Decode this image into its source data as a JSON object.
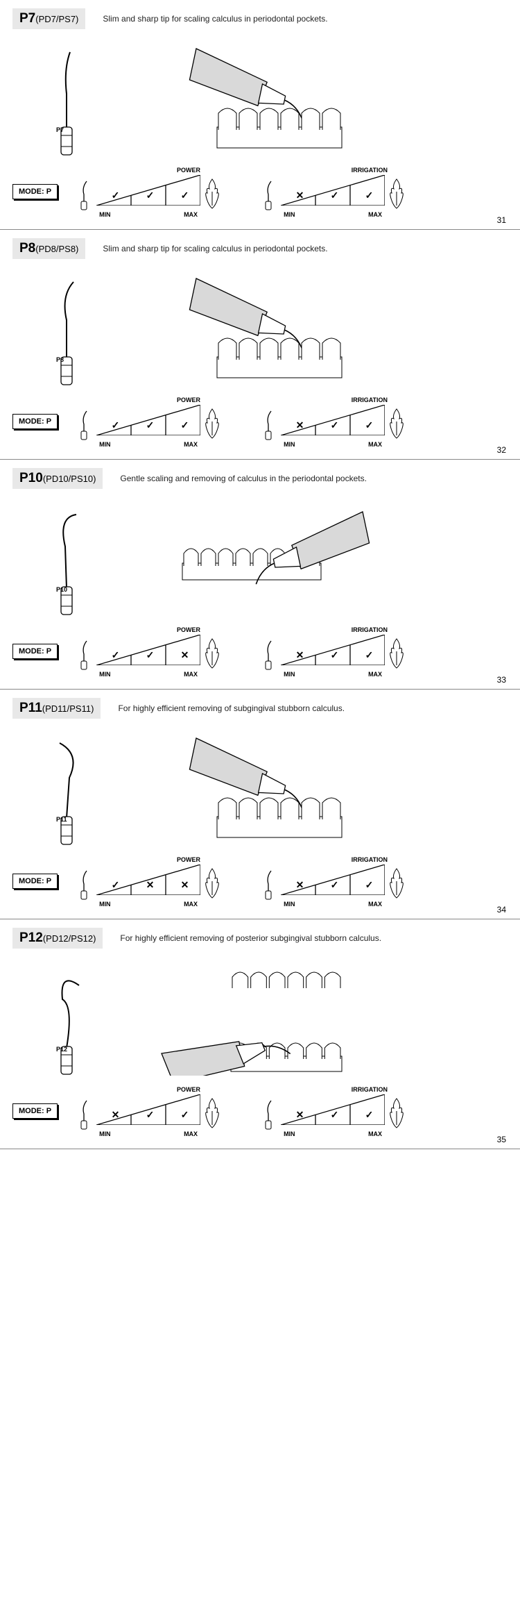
{
  "sections": [
    {
      "code_main": "P7",
      "code_sub": "(PD7/PS7)",
      "tip_label": "P7",
      "description": "Slim and sharp tip for scaling calculus in periodontal pockets.",
      "mode": "MODE: P",
      "power_marks": [
        "✓",
        "✓",
        "✓"
      ],
      "irrigation_marks": [
        "✕",
        "✓",
        "✓"
      ],
      "illus_variant": "handpiece_top",
      "page": "31"
    },
    {
      "code_main": "P8",
      "code_sub": "(PD8/PS8)",
      "tip_label": "P8",
      "description": "Slim and sharp tip for scaling calculus in periodontal pockets.",
      "mode": "MODE: P",
      "power_marks": [
        "✓",
        "✓",
        "✓"
      ],
      "irrigation_marks": [
        "✕",
        "✓",
        "✓"
      ],
      "illus_variant": "handpiece_inter",
      "page": "32"
    },
    {
      "code_main": "P10",
      "code_sub": "(PD10/PS10)",
      "tip_label": "P10",
      "description": "Gentle scaling and removing of calculus in the periodontal pockets.",
      "mode": "MODE: P",
      "power_marks": [
        "✓",
        "✓",
        "✕"
      ],
      "irrigation_marks": [
        "✕",
        "✓",
        "✓"
      ],
      "illus_variant": "handpiece_side",
      "page": "33"
    },
    {
      "code_main": "P11",
      "code_sub": "(PD11/PS11)",
      "tip_label": "P11",
      "description": "For highly efficient removing of subgingival stubborn calculus.",
      "mode": "MODE: P",
      "power_marks": [
        "✓",
        "✕",
        "✕"
      ],
      "irrigation_marks": [
        "✕",
        "✓",
        "✓"
      ],
      "illus_variant": "handpiece_top",
      "page": "34"
    },
    {
      "code_main": "P12",
      "code_sub": "(PD12/PS12)",
      "tip_label": "P12",
      "description": "For highly efficient removing of posterior subgingival stubborn calculus.",
      "mode": "MODE: P",
      "power_marks": [
        "✕",
        "✓",
        "✓"
      ],
      "irrigation_marks": [
        "✕",
        "✓",
        "✓"
      ],
      "illus_variant": "handpiece_mouth",
      "page": "35"
    }
  ],
  "labels": {
    "power": "POWER",
    "irrigation": "IRRIGATION",
    "min": "MIN",
    "max": "MAX"
  },
  "style": {
    "badge_bg": "#e8e8e8",
    "line_color": "#000000",
    "hand_fill": "#d9d9d9",
    "wedge_w": 150,
    "wedge_h": 44
  }
}
